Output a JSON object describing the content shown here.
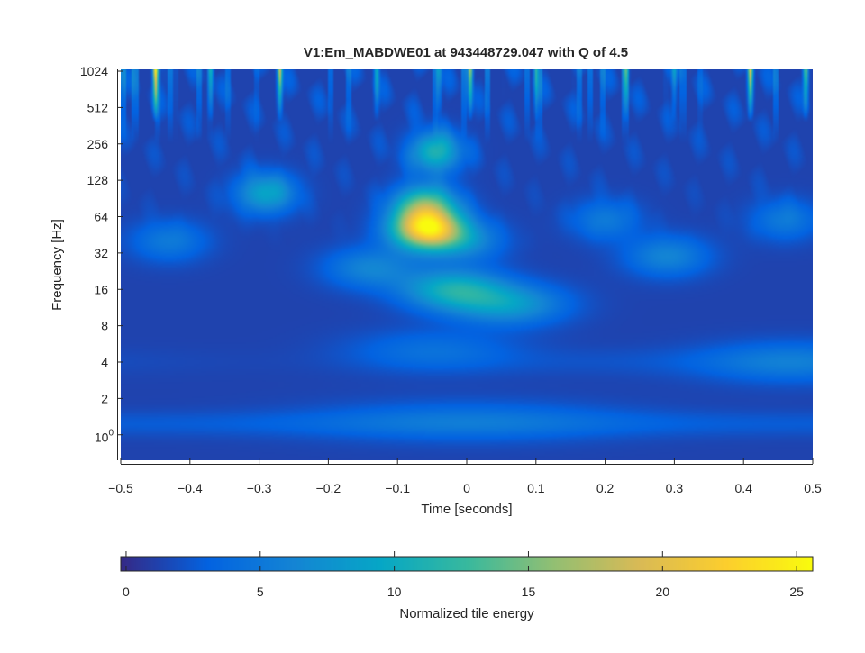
{
  "chart_data": {
    "type": "heatmap",
    "title": "V1:Em_MABDWE01 at 943448729.047 with Q of 4.5",
    "xlabel": "Time [seconds]",
    "ylabel": "Frequency [Hz]",
    "xlim": [
      -0.5,
      0.5
    ],
    "ylim_log2": [
      -0.7,
      10.05
    ],
    "y_scale": "log2",
    "x_ticks": [
      {
        "value": -0.5,
        "label": "−0.5"
      },
      {
        "value": -0.4,
        "label": "−0.4"
      },
      {
        "value": -0.3,
        "label": "−0.3"
      },
      {
        "value": -0.2,
        "label": "−0.2"
      },
      {
        "value": -0.1,
        "label": "−0.1"
      },
      {
        "value": 0,
        "label": "0"
      },
      {
        "value": 0.1,
        "label": "0.1"
      },
      {
        "value": 0.2,
        "label": "0.2"
      },
      {
        "value": 0.3,
        "label": "0.3"
      },
      {
        "value": 0.4,
        "label": "0.4"
      },
      {
        "value": 0.5,
        "label": "0.5"
      }
    ],
    "y_ticks": [
      {
        "value": 1,
        "label": "10",
        "sup": "0"
      },
      {
        "value": 2,
        "label": "2"
      },
      {
        "value": 4,
        "label": "4"
      },
      {
        "value": 8,
        "label": "8"
      },
      {
        "value": 16,
        "label": "16"
      },
      {
        "value": 32,
        "label": "32"
      },
      {
        "value": 64,
        "label": "64"
      },
      {
        "value": 128,
        "label": "128"
      },
      {
        "value": 256,
        "label": "256"
      },
      {
        "value": 512,
        "label": "512"
      },
      {
        "value": 1024,
        "label": "1024"
      }
    ],
    "colorbar": {
      "label": "Normalized tile energy",
      "range": [
        -0.2,
        25.6
      ],
      "ticks": [
        {
          "value": 0,
          "label": "0"
        },
        {
          "value": 5,
          "label": "5"
        },
        {
          "value": 10,
          "label": "10"
        },
        {
          "value": 15,
          "label": "15"
        },
        {
          "value": 20,
          "label": "20"
        },
        {
          "value": 25,
          "label": "25"
        }
      ],
      "colormap_stops": [
        "#352a87",
        "#0363e1",
        "#1485d4",
        "#06a7c6",
        "#38b99e",
        "#92bf73",
        "#d9ba56",
        "#fcce2e",
        "#f9fb0e"
      ]
    },
    "background_energy": 1.2,
    "blobs": [
      {
        "name": "main-chirp-core",
        "t": -0.057,
        "f": 50,
        "energy": 21
      },
      {
        "name": "main-chirp-upper",
        "t": -0.06,
        "f": 80,
        "energy": 12
      },
      {
        "name": "chirp-high-streak",
        "t": -0.045,
        "f": 220,
        "energy": 10
      },
      {
        "name": "main-low-band",
        "t": -0.02,
        "f": 16,
        "energy": 9
      },
      {
        "name": "low-band-right",
        "t": 0.06,
        "f": 12,
        "energy": 7
      },
      {
        "name": "left-lobe",
        "t": -0.14,
        "f": 24,
        "energy": 5
      },
      {
        "name": "mid-lobe",
        "t": 0.0,
        "f": 40,
        "energy": 5
      },
      {
        "name": "spot-left",
        "t": -0.29,
        "f": 100,
        "energy": 8
      },
      {
        "name": "spot-right",
        "t": 0.29,
        "f": 30,
        "energy": 5
      },
      {
        "name": "spot-far-right",
        "t": 0.46,
        "f": 60,
        "energy": 4
      },
      {
        "name": "spot-early",
        "t": -0.43,
        "f": 40,
        "energy": 4
      },
      {
        "name": "spot-mid-right",
        "t": 0.2,
        "f": 60,
        "energy": 4
      },
      {
        "name": "band-4hz-right",
        "t": 0.47,
        "f": 4,
        "energy": 4
      },
      {
        "name": "band-4hz-mid",
        "t": -0.05,
        "f": 5,
        "energy": 3
      },
      {
        "name": "band-1hz",
        "t": 0.0,
        "f": 1.3,
        "energy": 3
      }
    ],
    "glitch_spikes": [
      {
        "t": -0.45,
        "energy": 20
      },
      {
        "t": -0.27,
        "energy": 17
      },
      {
        "t": 0.005,
        "energy": 16
      },
      {
        "t": -0.13,
        "energy": 9
      },
      {
        "t": 0.41,
        "energy": 20
      },
      {
        "t": 0.49,
        "energy": 13
      },
      {
        "t": 0.23,
        "energy": 9
      },
      {
        "t": -0.37,
        "energy": 8
      },
      {
        "t": -0.04,
        "energy": 7
      },
      {
        "t": 0.1,
        "energy": 7
      },
      {
        "t": 0.3,
        "energy": 6
      }
    ]
  }
}
